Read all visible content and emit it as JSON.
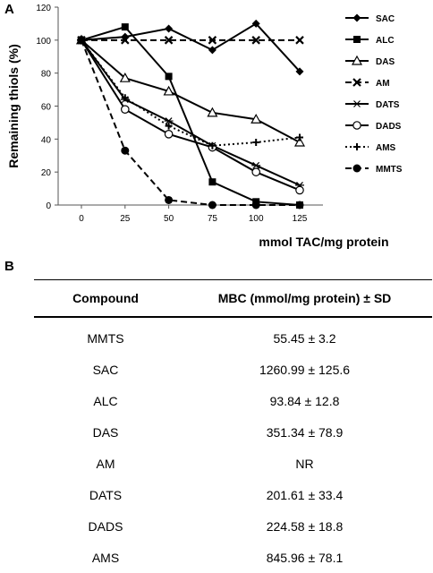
{
  "panels": {
    "a_label": "A",
    "b_label": "B"
  },
  "chart_data": {
    "type": "line",
    "title": "",
    "ylabel": "Remaining thiols (%)",
    "xlabel": "mmol TAC/mg protein",
    "x": [
      0,
      25,
      50,
      75,
      100,
      125
    ],
    "xticks": [
      "0",
      "25",
      "50",
      "75",
      "100",
      "125"
    ],
    "yticks": [
      "0",
      "20",
      "40",
      "60",
      "80",
      "100",
      "120"
    ],
    "ylim": [
      0,
      120
    ],
    "grid": false,
    "legend_position": "right",
    "series": [
      {
        "name": "SAC",
        "marker": "diamond",
        "dash": "solid",
        "values": [
          100,
          102,
          107,
          94,
          110,
          81
        ]
      },
      {
        "name": "ALC",
        "marker": "square",
        "dash": "solid",
        "values": [
          100,
          108,
          78,
          14,
          2,
          0
        ]
      },
      {
        "name": "DAS",
        "marker": "triangle-open",
        "dash": "solid",
        "values": [
          100,
          77,
          69,
          56,
          52,
          38
        ]
      },
      {
        "name": "AM",
        "marker": "x",
        "dash": "dashed",
        "values": [
          100,
          100,
          100,
          100,
          100,
          100
        ]
      },
      {
        "name": "DATS",
        "marker": "asterisk",
        "dash": "solid",
        "values": [
          100,
          64,
          51,
          36,
          24,
          12
        ]
      },
      {
        "name": "DADS",
        "marker": "circle-open",
        "dash": "solid",
        "values": [
          100,
          58,
          43,
          35,
          20,
          9
        ]
      },
      {
        "name": "AMS",
        "marker": "plus",
        "dash": "dotted",
        "values": [
          100,
          65,
          48,
          36,
          38,
          41
        ]
      },
      {
        "name": "MMTS",
        "marker": "circle-filled",
        "dash": "dashed",
        "values": [
          100,
          33,
          3,
          0,
          0,
          0
        ]
      }
    ]
  },
  "table": {
    "headers": [
      "Compound",
      "MBC (mmol/mg protein) ± SD"
    ],
    "rows": [
      [
        "MMTS",
        "55.45 ± 3.2"
      ],
      [
        "SAC",
        "1260.99 ± 125.6"
      ],
      [
        "ALC",
        "93.84 ± 12.8"
      ],
      [
        "DAS",
        "351.34 ± 78.9"
      ],
      [
        "AM",
        "NR"
      ],
      [
        "DATS",
        "201.61 ± 33.4"
      ],
      [
        "DADS",
        "224.58 ± 18.8"
      ],
      [
        "AMS",
        "845.96 ± 78.1"
      ]
    ]
  }
}
